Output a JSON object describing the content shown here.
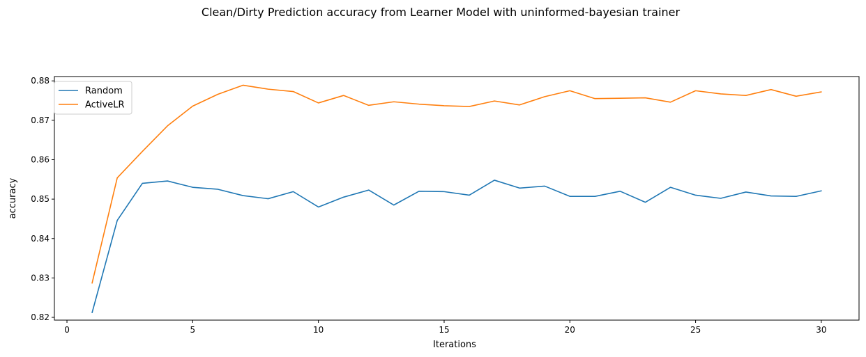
{
  "chart_data": {
    "type": "line",
    "title": "Clean/Dirty Prediction accuracy from Learner Model with uninformed-bayesian trainer",
    "xlabel": "Iterations",
    "ylabel": "accuracy",
    "xlim": [
      -0.5,
      31.5
    ],
    "ylim": [
      0.8193,
      0.8811
    ],
    "xticks": [
      0,
      5,
      10,
      15,
      20,
      25,
      30
    ],
    "yticks": [
      0.82,
      0.83,
      0.84,
      0.85,
      0.86,
      0.87,
      0.88
    ],
    "grid": false,
    "legend": "upper left",
    "x": [
      1,
      2,
      3,
      4,
      5,
      6,
      7,
      8,
      9,
      10,
      11,
      12,
      13,
      14,
      15,
      16,
      17,
      18,
      19,
      20,
      21,
      22,
      23,
      24,
      25,
      26,
      27,
      28,
      29,
      30
    ],
    "series": [
      {
        "name": "Random",
        "color": "#1f77b4",
        "values": [
          0.8212,
          0.8446,
          0.854,
          0.8546,
          0.853,
          0.8525,
          0.8509,
          0.8501,
          0.8519,
          0.848,
          0.8505,
          0.8523,
          0.8485,
          0.852,
          0.8519,
          0.851,
          0.8548,
          0.8528,
          0.8533,
          0.8507,
          0.8507,
          0.852,
          0.8492,
          0.853,
          0.851,
          0.8502,
          0.8518,
          0.8508,
          0.8507,
          0.8521
        ]
      },
      {
        "name": "ActiveLR",
        "color": "#ff7f0e",
        "values": [
          0.8287,
          0.8554,
          0.8621,
          0.8686,
          0.8736,
          0.8766,
          0.8789,
          0.8779,
          0.8773,
          0.8744,
          0.8763,
          0.8738,
          0.8747,
          0.8741,
          0.8737,
          0.8735,
          0.8749,
          0.8739,
          0.876,
          0.8775,
          0.8755,
          0.8756,
          0.8757,
          0.8746,
          0.8775,
          0.8767,
          0.8763,
          0.8778,
          0.8761,
          0.8772
        ]
      }
    ]
  }
}
